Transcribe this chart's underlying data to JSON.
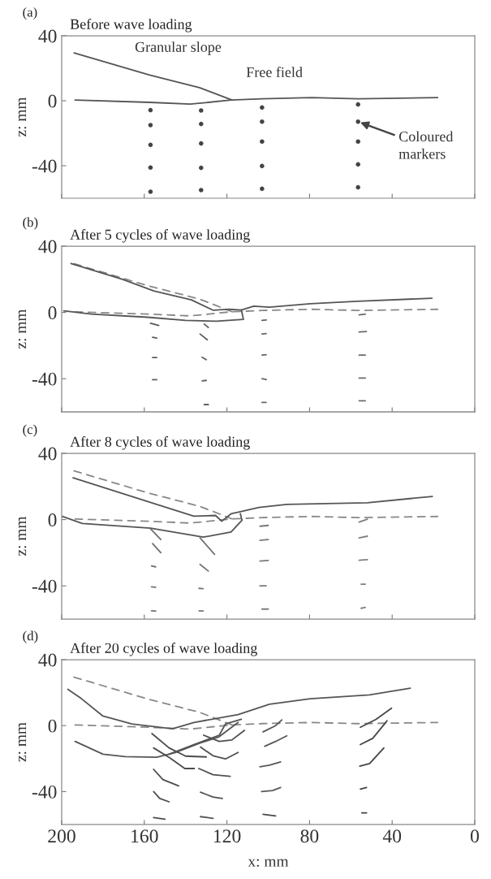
{
  "chart_data": [
    {
      "type": "line",
      "title": "Before wave loading",
      "ylabel": "z: mm",
      "annotations": [
        "(a)",
        {
          "text": "Granular slope",
          "x": 160,
          "y": 17
        },
        {
          "text": "Free field",
          "x": 97,
          "y": 1.5
        },
        {
          "text": "Coloured markers",
          "x": 56.5,
          "y": -12.9
        }
      ],
      "xlim": [
        200,
        0
      ],
      "ylim": [
        -60,
        40
      ],
      "xticks": [
        200,
        160,
        120,
        80,
        40,
        0
      ],
      "yticks": [
        -40,
        0,
        40
      ],
      "tick_labels": "y",
      "grid": false,
      "series": [
        {
          "color": "#555555",
          "line_style": "solid",
          "x": [
            194,
            157.4,
            133.3,
            117.5
          ],
          "values": [
            29.4,
            15.8,
            8.1,
            0.4
          ]
        },
        {
          "color": "#555555",
          "line_style": "solid",
          "x": [
            193.5,
            157.4,
            137.8,
            118,
            103,
            79,
            56.5,
            18
          ],
          "values": [
            0.4,
            -1,
            -2.1,
            0.4,
            1.2,
            1.9,
            1.2,
            1.9
          ]
        },
        {
          "type": "scatter",
          "color": "#444444",
          "marker": "circle",
          "x": [
            157,
            157,
            157,
            157,
            157,
            132.5,
            132.5,
            132.5,
            132.5,
            132.5,
            103,
            103,
            103,
            103,
            103,
            56.5,
            56.5,
            56.5,
            56.5,
            56.5
          ],
          "values": [
            -5.8,
            -15,
            -27.2,
            -41.1,
            -56,
            -6,
            -14.3,
            -26.3,
            -41.3,
            -55,
            -4.2,
            -12.9,
            -25.1,
            -40.2,
            -54.2,
            -2.3,
            -12.9,
            -25.1,
            -39.2,
            -53.3
          ]
        }
      ]
    },
    {
      "type": "line",
      "title": "After 5 cycles of wave loading",
      "ylabel": "z: mm",
      "annotations": [
        "(b)"
      ],
      "xlim": [
        200,
        0
      ],
      "ylim": [
        -60,
        40
      ],
      "xticks": [
        200,
        160,
        120,
        80,
        40,
        0
      ],
      "yticks": [
        -40,
        0,
        40
      ],
      "tick_labels": "y",
      "grid": false,
      "series": [
        {
          "color": "#888888",
          "line_style": "dashed",
          "x": [
            194,
            157.4,
            133.3,
            117.5
          ],
          "values": [
            29.4,
            15.8,
            8.1,
            0.4
          ]
        },
        {
          "color": "#888888",
          "line_style": "dashed",
          "x": [
            193.5,
            157.4,
            137.8,
            118,
            103,
            79,
            56.5,
            18
          ],
          "values": [
            0.4,
            -1,
            -2.1,
            0.4,
            1.2,
            1.9,
            1.2,
            1.9
          ]
        },
        {
          "color": "#555555",
          "line_style": "solid",
          "x": [
            195.5,
            170.5,
            155.4,
            137.2,
            126.6,
            119,
            113,
            107,
            99.4,
            79.7,
            57,
            20.7
          ],
          "values": [
            29.5,
            20,
            13,
            7.6,
            1.3,
            1.9,
            1.5,
            3.8,
            3.2,
            5.3,
            6.7,
            8.6
          ]
        },
        {
          "color": "#555555",
          "line_style": "solid",
          "x": [
            199,
            185.6,
            158.4,
            140,
            125,
            112,
            113
          ],
          "values": [
            1,
            -1,
            -2.9,
            -4.8,
            -5.3,
            -4.2,
            1.5
          ]
        },
        {
          "color": "#5a5a5a",
          "line_style": "solid",
          "x": [
            157,
            153
          ],
          "values": [
            -6.5,
            -7.8
          ]
        },
        {
          "color": "#5b5b5b",
          "line_style": "solid",
          "x": [
            156,
            154
          ],
          "values": [
            -15,
            -15.5
          ]
        },
        {
          "color": "#5c5c5c",
          "line_style": "solid",
          "x": [
            156,
            154
          ],
          "values": [
            -27.2,
            -27.2
          ]
        },
        {
          "color": "#5d5d5d",
          "line_style": "solid",
          "x": [
            156,
            154
          ],
          "values": [
            -40.6,
            -40.6
          ]
        },
        {
          "color": "#5e5e5e",
          "line_style": "solid",
          "x": [
            131,
            129
          ],
          "values": [
            -7,
            -9
          ]
        },
        {
          "color": "#5f5f5f",
          "line_style": "solid",
          "x": [
            133,
            129.5
          ],
          "values": [
            -13,
            -16.5
          ]
        },
        {
          "color": "#606060",
          "line_style": "solid",
          "x": [
            132,
            130
          ],
          "values": [
            -27,
            -28.5
          ]
        },
        {
          "color": "#616161",
          "line_style": "solid",
          "x": [
            132,
            130
          ],
          "values": [
            -41.3,
            -41
          ]
        },
        {
          "color": "#626262",
          "line_style": "solid",
          "x": [
            131,
            129
          ],
          "values": [
            -55.6,
            -55.6
          ]
        },
        {
          "color": "#636363",
          "line_style": "solid",
          "x": [
            103,
            101
          ],
          "values": [
            -4.8,
            -4.5
          ]
        },
        {
          "color": "#646464",
          "line_style": "solid",
          "x": [
            103,
            101
          ],
          "values": [
            -13,
            -12.8
          ]
        },
        {
          "color": "#656565",
          "line_style": "solid",
          "x": [
            103,
            101
          ],
          "values": [
            -25.7,
            -25.5
          ]
        },
        {
          "color": "#666666",
          "line_style": "solid",
          "x": [
            103,
            101
          ],
          "values": [
            -40,
            -40.5
          ]
        },
        {
          "color": "#676767",
          "line_style": "solid",
          "x": [
            103,
            101
          ],
          "values": [
            -54.3,
            -54.3
          ]
        },
        {
          "color": "#686868",
          "line_style": "solid",
          "x": [
            56,
            53
          ],
          "values": [
            -1.5,
            -1
          ]
        },
        {
          "color": "#696969",
          "line_style": "solid",
          "x": [
            56,
            52.5
          ],
          "values": [
            -11.8,
            -11.5
          ]
        },
        {
          "color": "#6a6a6a",
          "line_style": "solid",
          "x": [
            56,
            53
          ],
          "values": [
            -25.7,
            -25.7
          ]
        },
        {
          "color": "#6b6b6b",
          "line_style": "solid",
          "x": [
            56,
            53
          ],
          "values": [
            -39.6,
            -39.6
          ]
        },
        {
          "color": "#6c6c6c",
          "line_style": "solid",
          "x": [
            56,
            53
          ],
          "values": [
            -53.3,
            -53.3
          ]
        }
      ]
    },
    {
      "type": "line",
      "title": "After 8 cycles of wave loading",
      "ylabel": "z: mm",
      "annotations": [
        "(c)"
      ],
      "xlim": [
        200,
        0
      ],
      "ylim": [
        -60,
        40
      ],
      "xticks": [
        200,
        160,
        120,
        80,
        40,
        0
      ],
      "yticks": [
        -40,
        0,
        40
      ],
      "tick_labels": "y",
      "grid": false,
      "series": [
        {
          "color": "#888888",
          "line_style": "dashed",
          "x": [
            194,
            157.4,
            133.3,
            117.5
          ],
          "values": [
            29.4,
            15.8,
            8.1,
            0.4
          ]
        },
        {
          "color": "#888888",
          "line_style": "dashed",
          "x": [
            193.5,
            157.4,
            137.8,
            118,
            103,
            79,
            56.5,
            18
          ],
          "values": [
            0.4,
            -1,
            -2.1,
            0.4,
            1.2,
            1.9,
            1.2,
            1.9
          ]
        },
        {
          "color": "#555555",
          "line_style": "solid",
          "x": [
            194.5,
            154,
            136,
            125.5,
            122.5,
            118,
            113.5,
            104.5,
            91,
            52,
            20.5
          ],
          "values": [
            25.2,
            9.2,
            2.1,
            2.5,
            -1,
            3.5,
            4.8,
            7.3,
            9.2,
            10.2,
            14
          ]
        },
        {
          "color": "#555555",
          "line_style": "solid",
          "x": [
            199.7,
            190,
            157,
            131.5,
            118,
            112.7,
            113.5
          ],
          "values": [
            1.9,
            -2.3,
            -5.2,
            -10.6,
            -7.5,
            -0.4,
            3.5
          ]
        },
        {
          "color": "#6f6f6f",
          "line_style": "solid",
          "x": [
            157,
            152
          ],
          "values": [
            -5.5,
            -12
          ]
        },
        {
          "color": "#707070",
          "line_style": "solid",
          "x": [
            156,
            152
          ],
          "values": [
            -14.5,
            -20
          ]
        },
        {
          "color": "#717171",
          "line_style": "solid",
          "x": [
            156.5,
            154.5
          ],
          "values": [
            -28,
            -28.5
          ]
        },
        {
          "color": "#727272",
          "line_style": "solid",
          "x": [
            156.5,
            154.5
          ],
          "values": [
            -40.6,
            -40.8
          ]
        },
        {
          "color": "#737373",
          "line_style": "solid",
          "x": [
            156.5,
            154.5
          ],
          "values": [
            -55,
            -55.2
          ]
        },
        {
          "color": "#747474",
          "line_style": "solid",
          "x": [
            133,
            126
          ],
          "values": [
            -11,
            -21
          ]
        },
        {
          "color": "#757575",
          "line_style": "solid",
          "x": [
            133,
            129
          ],
          "values": [
            -27,
            -31
          ]
        },
        {
          "color": "#767676",
          "line_style": "solid",
          "x": [
            133.5,
            131.5
          ],
          "values": [
            -41.5,
            -41.7
          ]
        },
        {
          "color": "#777777",
          "line_style": "solid",
          "x": [
            133.5,
            131.5
          ],
          "values": [
            -55,
            -55.2
          ]
        },
        {
          "color": "#787878",
          "line_style": "solid",
          "x": [
            104,
            100
          ],
          "values": [
            -4,
            -3.5
          ]
        },
        {
          "color": "#797979",
          "line_style": "solid",
          "x": [
            104,
            100
          ],
          "values": [
            -12.5,
            -12
          ]
        },
        {
          "color": "#7a7a7a",
          "line_style": "solid",
          "x": [
            104,
            100
          ],
          "values": [
            -25,
            -24.6
          ]
        },
        {
          "color": "#7b7b7b",
          "line_style": "solid",
          "x": [
            104,
            101
          ],
          "values": [
            -40,
            -40
          ]
        },
        {
          "color": "#7c7c7c",
          "line_style": "solid",
          "x": [
            103,
            100
          ],
          "values": [
            -54,
            -54
          ]
        },
        {
          "color": "#7d7d7d",
          "line_style": "solid",
          "x": [
            56,
            52
          ],
          "values": [
            -1.5,
            0.2
          ]
        },
        {
          "color": "#7e7e7e",
          "line_style": "solid",
          "x": [
            56,
            52
          ],
          "values": [
            -11,
            -10
          ]
        },
        {
          "color": "#7f7f7f",
          "line_style": "solid",
          "x": [
            56,
            52
          ],
          "values": [
            -24.5,
            -24.2
          ]
        },
        {
          "color": "#808080",
          "line_style": "solid",
          "x": [
            55,
            53
          ],
          "values": [
            -39,
            -39
          ]
        },
        {
          "color": "#818181",
          "line_style": "solid",
          "x": [
            55,
            53
          ],
          "values": [
            -53.5,
            -53
          ]
        }
      ]
    },
    {
      "type": "line",
      "title": "After 20 cycles of wave loading",
      "xlabel": "x: mm",
      "ylabel": "z: mm",
      "annotations": [
        "(d)"
      ],
      "xlim": [
        200,
        0
      ],
      "ylim": [
        -60,
        40
      ],
      "xticks": [
        200,
        160,
        120,
        80,
        40,
        0
      ],
      "yticks": [
        -40,
        0,
        40
      ],
      "grid": false,
      "series": [
        {
          "color": "#888888",
          "line_style": "dashed",
          "x": [
            194,
            157.4,
            133.3,
            117.5
          ],
          "values": [
            29.4,
            15.8,
            8.1,
            0.4
          ]
        },
        {
          "color": "#888888",
          "line_style": "dashed",
          "x": [
            193.5,
            157.4,
            137.8,
            118,
            103,
            79,
            56.5,
            18
          ],
          "values": [
            0.4,
            -1,
            -2.1,
            0.4,
            1.2,
            1.9,
            1.2,
            1.9
          ]
        },
        {
          "color": "#555555",
          "line_style": "solid",
          "x": [
            197,
            190.4,
            180,
            166,
            146.4,
            136,
            114.6,
            99.4,
            79.7,
            51,
            31.2
          ],
          "values": [
            22,
            16.3,
            5.8,
            1,
            -1.9,
            1.9,
            6.7,
            13,
            16.3,
            18.6,
            22.7
          ]
        },
        {
          "color": "#555555",
          "line_style": "solid",
          "x": [
            193.5,
            180,
            169.2,
            154,
            145,
            133,
            123.7,
            114.6
          ],
          "values": [
            -9.6,
            -17.3,
            -18.8,
            -19.2,
            -16.3,
            -10.6,
            -6.7,
            1.9
          ]
        },
        {
          "color": "#4a4a4a",
          "line_style": "solid",
          "x": [
            156.3,
            148,
            140,
            130
          ],
          "values": [
            -4.8,
            -13.5,
            -18.5,
            -19
          ]
        },
        {
          "color": "#4b4b4b",
          "line_style": "solid",
          "x": [
            155.5,
            148,
            140.4,
            135.8
          ],
          "values": [
            -13.5,
            -19.2,
            -26,
            -26
          ]
        },
        {
          "color": "#4c4c4c",
          "line_style": "solid",
          "x": [
            155.5,
            151,
            143.4
          ],
          "values": [
            -26.5,
            -32.7,
            -36.5
          ]
        },
        {
          "color": "#4d4d4d",
          "line_style": "solid",
          "x": [
            155.5,
            152.5,
            148
          ],
          "values": [
            -40,
            -44.2,
            -46.2
          ]
        },
        {
          "color": "#4e4e4e",
          "line_style": "solid",
          "x": [
            155.5,
            150
          ],
          "values": [
            -55.8,
            -56.7
          ]
        },
        {
          "color": "#4f4f4f",
          "line_style": "solid",
          "x": [
            131.3,
            123.7,
            117.6,
            111.5
          ],
          "values": [
            -5.8,
            -9.6,
            -8.7,
            -2.9
          ]
        },
        {
          "color": "#505050",
          "line_style": "solid",
          "x": [
            132.8,
            126.7,
            120.7,
            114.6
          ],
          "values": [
            -13,
            -18.3,
            -20.2,
            -16.3
          ]
        },
        {
          "color": "#515151",
          "line_style": "solid",
          "x": [
            133.6,
            126.7,
            118.4
          ],
          "values": [
            -26,
            -29.8,
            -30.8
          ]
        },
        {
          "color": "#525252",
          "line_style": "solid",
          "x": [
            132.8,
            126.7,
            122.2
          ],
          "values": [
            -40.4,
            -43.3,
            -44.2
          ]
        },
        {
          "color": "#535353",
          "line_style": "solid",
          "x": [
            132.8,
            126.7
          ],
          "values": [
            -55.2,
            -56.2
          ]
        },
        {
          "color": "#545454",
          "line_style": "solid",
          "x": [
            148,
            136,
            123.7,
            120.7,
            113
          ],
          "values": [
            -17.3,
            -11.5,
            -5.8,
            1,
            3.8
          ]
        },
        {
          "color": "#565656",
          "line_style": "solid",
          "x": [
            102.5,
            96.4,
            93.4
          ],
          "values": [
            -3.8,
            0,
            3.5
          ]
        },
        {
          "color": "#575757",
          "line_style": "solid",
          "x": [
            101.7,
            96.4,
            91
          ],
          "values": [
            -12.5,
            -9.6,
            -6.2
          ]
        },
        {
          "color": "#585858",
          "line_style": "solid",
          "x": [
            104,
            99.4,
            94
          ],
          "values": [
            -25,
            -24,
            -22
          ]
        },
        {
          "color": "#595959",
          "line_style": "solid",
          "x": [
            103.2,
            97.9,
            94
          ],
          "values": [
            -40,
            -39.4,
            -37.5
          ]
        },
        {
          "color": "#494949",
          "line_style": "solid",
          "x": [
            102.5,
            96.4
          ],
          "values": [
            -53.8,
            -54.8
          ]
        },
        {
          "color": "#484848",
          "line_style": "solid",
          "x": [
            55.4,
            47.8,
            40.3
          ],
          "values": [
            -1,
            3.8,
            10.6
          ]
        },
        {
          "color": "#474747",
          "line_style": "solid",
          "x": [
            55.4,
            49.4,
            42.5
          ],
          "values": [
            -11.5,
            -7.7,
            2.9
          ]
        },
        {
          "color": "#464646",
          "line_style": "solid",
          "x": [
            55.7,
            50.9,
            44
          ],
          "values": [
            -24.6,
            -23,
            -13.5
          ]
        },
        {
          "color": "#454545",
          "line_style": "solid",
          "x": [
            55.4,
            52.4
          ],
          "values": [
            -38.5,
            -37.5
          ]
        },
        {
          "color": "#434343",
          "line_style": "solid",
          "x": [
            54.7,
            52.4
          ],
          "values": [
            -52.9,
            -52.9
          ]
        }
      ]
    }
  ]
}
